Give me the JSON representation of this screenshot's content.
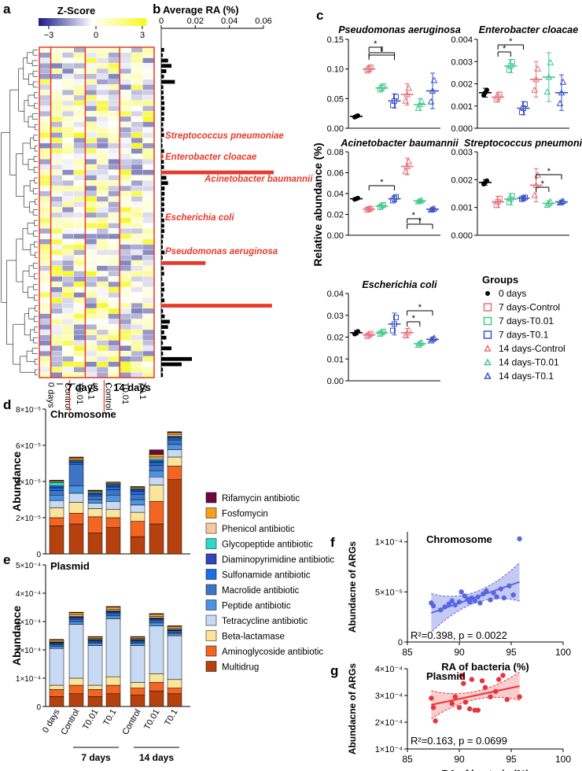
{
  "panel_letters": {
    "a": "a",
    "b": "b",
    "c": "c",
    "d": "d",
    "e": "e",
    "f": "f",
    "g": "g"
  },
  "colors": {
    "red": "#e8392b",
    "zero_days": "#000000",
    "control": "#e8707a",
    "t001": "#40c98d",
    "t01": "#3a52c7",
    "chrom_scatter": "#5866e0",
    "plasmid_scatter": "#e8343a",
    "heat_low": "#1e1e8a",
    "heat_mid": "#ffffff",
    "heat_high": "#f8f82a"
  },
  "heatmap": {
    "zscore_title": "Z-Score",
    "scale_ticks": [
      "−3",
      "0",
      "3"
    ],
    "n_rows": 62,
    "n_cols": 10,
    "col_labels": [
      "0 days",
      "Control",
      "T0.01",
      "T0.1",
      "Control",
      "T0.01",
      "T0.1"
    ],
    "group_labels": [
      "7 days",
      "14 days"
    ],
    "annotations": [
      "Streptococcus pneumoniae",
      "Enterobacter cloacae",
      "Acinetobacter baumannii",
      "Escherichia coli",
      "Pseudomonas aeruginosa"
    ]
  },
  "panel_b": {
    "title": "Average RA (%)",
    "ticks": [
      "0",
      "0.02",
      "0.04",
      "0.06"
    ]
  },
  "panel_c": {
    "ylabel": "Relative abundance (%)",
    "legend_title": "Groups",
    "legend": [
      "0 days",
      "7 days-Control",
      "7 days-T0.01",
      "7 days-T0.1",
      "14 days-Control",
      "14 days-T0.01",
      "14 days-T0.1"
    ],
    "sig_mark": "*"
  },
  "chart_data": [
    {
      "type": "scatter",
      "panel": "c",
      "title": "Pseudomonas aeruginosa",
      "groups": [
        "0 days",
        "7 days-Control",
        "7 days-T0.01",
        "7 days-T0.1",
        "14 days-Control",
        "14 days-T0.01",
        "14 days-T0.1"
      ],
      "means": [
        0.02,
        0.1,
        0.068,
        0.046,
        0.057,
        0.04,
        0.063
      ],
      "errors": [
        0.002,
        0.005,
        0.005,
        0.012,
        0.018,
        0.01,
        0.03
      ],
      "yticks": [
        "0.00",
        "0.05",
        "0.10",
        "0.15"
      ],
      "ylim": [
        0,
        0.15
      ]
    },
    {
      "type": "scatter",
      "panel": "c",
      "title": "Enterobacter cloacae",
      "groups": [
        "0 days",
        "7 days-Control",
        "7 days-T0.01",
        "7 days-T0.1",
        "14 days-Control",
        "14 days-T0.01",
        "14 days-T0.1"
      ],
      "means": [
        0.0016,
        0.0014,
        0.0028,
        0.0009,
        0.0022,
        0.0023,
        0.0016
      ],
      "errors": [
        0.0002,
        0.0002,
        0.0003,
        0.0003,
        0.0008,
        0.0011,
        0.0008
      ],
      "yticks": [
        "0.000",
        "0.001",
        "0.002",
        "0.003",
        "0.004"
      ],
      "ylim": [
        0,
        0.004
      ]
    },
    {
      "type": "scatter",
      "panel": "c",
      "title": "Acinetobacter baumannii",
      "groups": [
        "0 days",
        "7 days-Control",
        "7 days-T0.01",
        "7 days-T0.1",
        "14 days-Control",
        "14 days-T0.01",
        "14 days-T0.1"
      ],
      "means": [
        0.035,
        0.025,
        0.028,
        0.035,
        0.066,
        0.033,
        0.025
      ],
      "errors": [
        0.001,
        0.001,
        0.002,
        0.003,
        0.008,
        0.001,
        0.001
      ],
      "yticks": [
        "0.00",
        "0.02",
        "0.04",
        "0.06",
        "0.08"
      ],
      "ylim": [
        0,
        0.08
      ]
    },
    {
      "type": "scatter",
      "panel": "c",
      "title": "Streptococcus pneumoniae",
      "groups": [
        "0 days",
        "7 days-Control",
        "7 days-T0.01",
        "7 days-T0.1",
        "14 days-Control",
        "14 days-T0.01",
        "14 days-T0.1"
      ],
      "means": [
        0.0019,
        0.0012,
        0.0013,
        0.00133,
        0.0018,
        0.00115,
        0.0012
      ],
      "errors": [
        0.0001,
        0.0002,
        0.0002,
        5e-05,
        0.0006,
        0.0001,
        5e-05
      ],
      "yticks": [
        "0.000",
        "0.001",
        "0.002",
        "0.003"
      ],
      "ylim": [
        0,
        0.003
      ]
    },
    {
      "type": "scatter",
      "panel": "c",
      "title": "Escherichia coli",
      "groups": [
        "0 days",
        "7 days-Control",
        "7 days-T0.01",
        "7 days-T0.1",
        "14 days-Control",
        "14 days-T0.01",
        "14 days-T0.1"
      ],
      "means": [
        0.022,
        0.021,
        0.022,
        0.026,
        0.022,
        0.017,
        0.019
      ],
      "errors": [
        0.001,
        0.001,
        0.001,
        0.005,
        0.002,
        0.001,
        0.001
      ],
      "yticks": [
        "0.00",
        "0.01",
        "0.02",
        "0.03",
        "0.04"
      ],
      "ylim": [
        0,
        0.04
      ]
    },
    {
      "type": "bar",
      "panel": "d",
      "title": "Chromosome",
      "ylabel": "Abundance",
      "ylim": [
        0,
        8e-05
      ],
      "yticks": [
        "0",
        "2×10⁻⁵",
        "4×10⁻⁵",
        "6×10⁻⁵",
        "8×10⁻⁵"
      ],
      "categories": [
        "0 days",
        "Control",
        "T0.01",
        "T0.1",
        "Control",
        "T0.01",
        "T0.1"
      ],
      "series": [
        {
          "name": "Multidrug",
          "color": "#b5420e",
          "values": [
            1.55e-05,
            1.65e-05,
            1.15e-05,
            1.45e-05,
            9.5e-06,
            1.65e-05,
            4.1e-05
          ]
        },
        {
          "name": "Aminoglycoside antibiotic",
          "color": "#f26522",
          "values": [
            4.5e-06,
            6e-06,
            9e-06,
            5.5e-06,
            8.5e-06,
            1.25e-05,
            7.5e-06
          ]
        },
        {
          "name": "Beta-lactamase",
          "color": "#fbe59b",
          "values": [
            5.5e-06,
            6e-06,
            4.5e-06,
            4.5e-06,
            5e-06,
            9e-06,
            5e-06
          ]
        },
        {
          "name": "Tetracycline antibiotic",
          "color": "#c7d9f3",
          "values": [
            4e-06,
            5e-06,
            3e-06,
            4.5e-06,
            4e-06,
            4.5e-06,
            4e-06
          ]
        },
        {
          "name": "Peptide antibiotic",
          "color": "#4b93e3",
          "values": [
            3e-06,
            4e-06,
            2e-06,
            3.5e-06,
            3e-06,
            3.5e-06,
            3e-06
          ]
        },
        {
          "name": "Macrolide antibiotic",
          "color": "#3d75c4",
          "values": [
            2.5e-06,
            1.2e-05,
            2e-06,
            3e-06,
            3e-06,
            3e-06,
            2.5e-06
          ]
        },
        {
          "name": "Sulfonamide antibiotic",
          "color": "#1a6ee8",
          "values": [
            1.5e-06,
            1e-06,
            1e-06,
            1.5e-06,
            1.5e-06,
            1.5e-06,
            1e-06
          ]
        },
        {
          "name": "Diaminopyrimidine antibiotic",
          "color": "#3346b8",
          "values": [
            1e-06,
            5e-07,
            5e-07,
            1e-06,
            1e-06,
            1e-06,
            5e-07
          ]
        },
        {
          "name": "Glycopeptide antibiotic",
          "color": "#2ad9c8",
          "values": [
            2e-06,
            5e-07,
            5e-07,
            5e-07,
            5e-07,
            1e-06,
            5e-07
          ]
        },
        {
          "name": "Phenicol antibiotic",
          "color": "#f7c99b",
          "values": [
            5e-07,
            5e-07,
            5e-07,
            5e-07,
            5e-07,
            1e-06,
            1e-06
          ]
        },
        {
          "name": "Fosfomycin",
          "color": "#f9a01b",
          "values": [
            5e-07,
            1e-06,
            5e-07,
            5e-07,
            5e-07,
            1.5e-06,
            1e-06
          ]
        },
        {
          "name": "Rifamycin antibiotic",
          "color": "#6b0a3f",
          "values": [
            2e-07,
            5e-07,
            2e-07,
            2e-07,
            2e-07,
            2.5e-06,
            5e-07
          ]
        }
      ]
    },
    {
      "type": "bar",
      "panel": "e",
      "title": "Plasmid",
      "ylabel": "Abundance",
      "ylim": [
        0,
        0.0005
      ],
      "yticks": [
        "0",
        "1×10⁻⁴",
        "2×10⁻⁴",
        "3×10⁻⁴",
        "4×10⁻⁴",
        "5×10⁻⁴"
      ],
      "categories": [
        "0 days",
        "Control",
        "T0.01",
        "T0.1",
        "Control",
        "T0.01",
        "T0.1"
      ],
      "group_labels": [
        "7 days",
        "14 days"
      ],
      "series": [
        {
          "name": "Multidrug",
          "color": "#b5420e",
          "values": [
            3.5e-05,
            4.5e-05,
            3.5e-05,
            4.5e-05,
            4e-05,
            5.5e-05,
            4.5e-05
          ]
        },
        {
          "name": "Aminoglycoside antibiotic",
          "color": "#f26522",
          "values": [
            2.5e-05,
            3e-05,
            2.5e-05,
            3e-05,
            2.5e-05,
            3e-05,
            2e-05
          ]
        },
        {
          "name": "Beta-lactamase",
          "color": "#fbe59b",
          "values": [
            1.5e-05,
            2.5e-05,
            1.5e-05,
            3e-05,
            2e-05,
            3e-05,
            3e-05
          ]
        },
        {
          "name": "Tetracycline antibiotic",
          "color": "#c7d9f3",
          "values": [
            0.00013,
            0.00019,
            0.00014,
            0.000205,
            0.00013,
            0.00017,
            0.000155
          ]
        },
        {
          "name": "Peptide antibiotic",
          "color": "#4b93e3",
          "values": [
            8e-06,
            1e-05,
            8e-06,
            1e-05,
            8e-06,
            1e-05,
            8e-06
          ]
        },
        {
          "name": "Macrolide antibiotic",
          "color": "#3d75c4",
          "values": [
            5e-06,
            8e-06,
            5e-06,
            8e-06,
            5e-06,
            8e-06,
            5e-06
          ]
        },
        {
          "name": "Sulfonamide antibiotic",
          "color": "#1a6ee8",
          "values": [
            5e-06,
            5e-06,
            5e-06,
            5e-06,
            5e-06,
            5e-06,
            5e-06
          ]
        },
        {
          "name": "Diaminopyrimidine antibiotic",
          "color": "#3346b8",
          "values": [
            2e-06,
            3e-06,
            2e-06,
            3e-06,
            2e-06,
            3e-06,
            2e-06
          ]
        },
        {
          "name": "Glycopeptide antibiotic",
          "color": "#2ad9c8",
          "values": [
            2e-06,
            2e-06,
            2e-06,
            2e-06,
            2e-06,
            2e-06,
            2e-06
          ]
        },
        {
          "name": "Phenicol antibiotic",
          "color": "#f7c99b",
          "values": [
            3e-06,
            5e-06,
            3e-06,
            5e-06,
            3e-06,
            5e-06,
            4e-06
          ]
        },
        {
          "name": "Fosfomycin",
          "color": "#f9a01b",
          "values": [
            5e-06,
            8e-06,
            5e-06,
            8e-06,
            5e-06,
            8e-06,
            7e-06
          ]
        },
        {
          "name": "Rifamycin antibiotic",
          "color": "#6b0a3f",
          "values": [
            2e-06,
            2e-06,
            2e-06,
            2e-06,
            2e-06,
            2e-06,
            2e-06
          ]
        }
      ]
    },
    {
      "type": "scatter",
      "panel": "f",
      "title": "Chromosome",
      "xlabel": "RA of bacteria (%)",
      "ylabel": "Abundacne of ARGs",
      "xlim": [
        85,
        100
      ],
      "ylim": [
        0,
        0.00011
      ],
      "xticks": [
        "85",
        "90",
        "95",
        "100"
      ],
      "yticks": [
        "0",
        "5×10⁻⁵",
        "1×10⁻⁴"
      ],
      "stats": "R²=0.398, p = 0.0022",
      "fit": {
        "x": [
          87.3,
          95.8
        ],
        "y": [
          2.9e-05,
          6e-05
        ]
      },
      "x": [
        87.3,
        87.5,
        88.2,
        88.6,
        89.0,
        89.3,
        89.6,
        90.0,
        90.2,
        90.5,
        90.8,
        91.0,
        91.2,
        91.5,
        91.8,
        92.0,
        92.3,
        92.6,
        93.0,
        93.3,
        93.6,
        94.0,
        94.3,
        94.8,
        95.2,
        95.8
      ],
      "y": [
        3.9e-05,
        3.6e-05,
        3.2e-05,
        3.5e-05,
        3.8e-05,
        4.1e-05,
        3.7e-05,
        4e-05,
        5e-05,
        4.6e-05,
        4.3e-05,
        4e-05,
        4.4e-05,
        4.1e-05,
        4.5e-05,
        3.9e-05,
        4.8e-05,
        5.1e-05,
        4.2e-05,
        4.9e-05,
        4.5e-05,
        5.3e-05,
        4.4e-05,
        5.6e-05,
        4.7e-05,
        0.000103
      ]
    },
    {
      "type": "scatter",
      "panel": "g",
      "title": "Plasmid",
      "xlabel": "RA of bacteria (%)",
      "ylabel": "Abundacne of ARGs",
      "xlim": [
        85,
        100
      ],
      "ylim": [
        0.0001,
        0.0004
      ],
      "xticks": [
        "85",
        "90",
        "95",
        "100"
      ],
      "yticks": [
        "1×10⁻⁴",
        "2×10⁻⁴",
        "3×10⁻⁴",
        "4×10⁻⁴"
      ],
      "stats": "R²=0.163, p = 0.0699",
      "fit": {
        "x": [
          87.3,
          95.8
        ],
        "y": [
          0.000265,
          0.000335
        ]
      },
      "x": [
        87.3,
        87.5,
        87.7,
        89.3,
        89.6,
        90.0,
        90.2,
        90.4,
        90.6,
        91.0,
        91.2,
        91.5,
        91.8,
        92.2,
        92.5,
        93.0,
        93.5,
        93.8,
        94.2,
        94.6,
        95.8
      ],
      "y": [
        0.00029,
        0.000255,
        0.000205,
        0.00027,
        0.000295,
        0.000255,
        0.000375,
        0.000345,
        0.000275,
        0.00025,
        0.00036,
        0.000245,
        0.000245,
        0.000355,
        0.00033,
        0.000295,
        0.000315,
        0.00036,
        0.000375,
        0.000285,
        0.000295
      ]
    }
  ]
}
